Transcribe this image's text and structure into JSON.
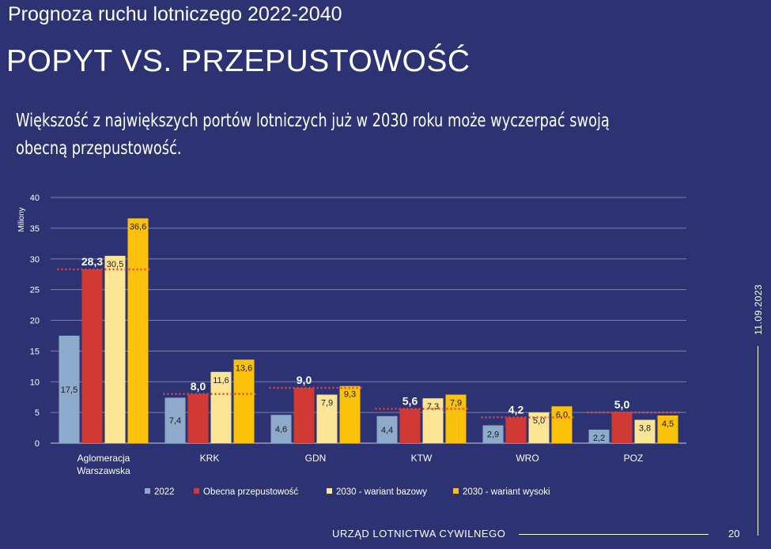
{
  "slide": {
    "subtitle": "Prognoza ruchu lotniczego 2022-2040",
    "title": "POPYT VS. PRZEPUSTOWOŚĆ",
    "lead": "Większość z największych portów lotniczych już w 2030 roku może wyczerpać swoją obecną przepustowość.",
    "date": "11.09.2023",
    "footer": "URZĄD LOTNICTWA CYWILNEGO",
    "page_number": "20"
  },
  "colors": {
    "background": "#2c3272",
    "s2022": "#8eaacb",
    "capacity": "#d13a34",
    "base": "#fde596",
    "high": "#fcc10a",
    "dotted": "#e34542",
    "grid": "#7a80ad"
  },
  "chart_data": {
    "type": "bar",
    "title": "",
    "xlabel": "",
    "ylabel": "Miliony",
    "ylim": [
      0,
      40
    ],
    "yticks": [
      "0",
      "5",
      "10",
      "15",
      "20",
      "25",
      "30",
      "35",
      "40"
    ],
    "categories": [
      [
        "Aglomeracja",
        "Warszawska"
      ],
      [
        "KRK"
      ],
      [
        "GDN"
      ],
      [
        "KTW"
      ],
      [
        "WRO"
      ],
      [
        "POZ"
      ]
    ],
    "series": [
      {
        "name": "2022",
        "values": [
          17.5,
          7.4,
          4.6,
          4.4,
          2.9,
          2.2
        ],
        "labels": [
          "17,5",
          "7,4",
          "4,6",
          "4,4",
          "2,9",
          "2,2"
        ]
      },
      {
        "name": "Obecna przepustowość",
        "values": [
          28.3,
          8.0,
          9.0,
          5.6,
          4.2,
          5.0
        ],
        "labels": [
          "28,3",
          "8,0",
          "9,0",
          "5,6",
          "4,2",
          "5,0"
        ]
      },
      {
        "name": "2030 - wariant bazowy",
        "values": [
          30.5,
          11.6,
          7.9,
          7.3,
          5.0,
          3.8
        ],
        "labels": [
          "30,5",
          "11,6",
          "7,9",
          "7,3",
          "5,0",
          "3,8"
        ]
      },
      {
        "name": "2030 - wariant wysoki",
        "values": [
          36.6,
          13.6,
          9.3,
          7.9,
          6.0,
          4.5
        ],
        "labels": [
          "36,6",
          "13,6",
          "9,3",
          "7,9",
          "6,0",
          "4,5"
        ]
      }
    ],
    "capacity_line_series": "Obecna przepustowość",
    "legend_position": "bottom"
  }
}
